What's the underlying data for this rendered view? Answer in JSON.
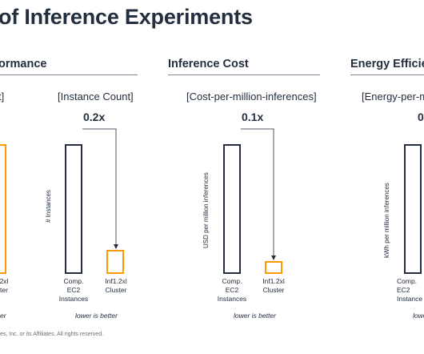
{
  "title": "of Inference Experiments",
  "sections": [
    {
      "heading": "ormance",
      "metric": "t]"
    },
    {
      "heading": "Inference Cost",
      "metric": "[Cost-per-million-inferences]",
      "ratio": "0.1x",
      "ylabel": "USD per million inferences"
    },
    {
      "heading": "Energy Efficien",
      "metric": "[Energy-per-m",
      "ratio": "0"
    }
  ],
  "instance_chart": {
    "metric": "[Instance Count]",
    "ratio": "0.2x",
    "ylabel": "# Instances"
  },
  "labels": {
    "comp_ec2": "Comp.\nEC2\nInstances",
    "inf_cluster": "Inf1.2xl\nCluster",
    "inf_partial": "2xl\nter",
    "comp_partial": "Comp.\nEC2\nInstance",
    "energy_ylabel": "kWh per million inferences"
  },
  "lower_is_better": "lower is better",
  "lower_partial_left": "er",
  "lower_partial_right": "lowe",
  "footer": "es, Inc. or its Affiliates. All rights reserved.",
  "colors": {
    "dark": "#232f3e",
    "accent": "#ff9900",
    "rule": "#7d8998"
  },
  "chart_data": [
    {
      "type": "bar",
      "categories": [
        "Comp. EC2 Instances",
        "Inf1.2xl Cluster"
      ],
      "values": [
        1,
        0.2
      ],
      "ylabel": "# Instances",
      "ratio_label": "0.2x"
    },
    {
      "type": "bar",
      "categories": [
        "Comp. EC2 Instances",
        "Inf1.2xl Cluster"
      ],
      "values": [
        1,
        0.1
      ],
      "ylabel": "USD per million inferences",
      "ratio_label": "0.1x"
    }
  ]
}
